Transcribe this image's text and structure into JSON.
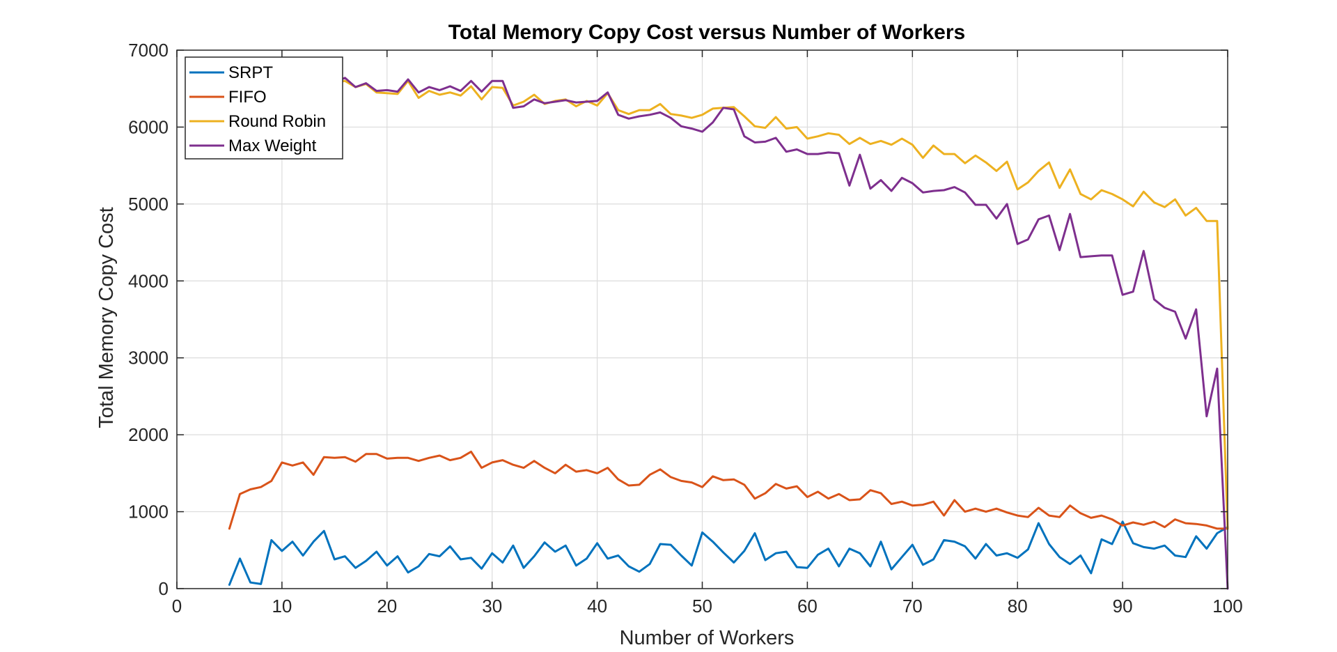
{
  "chart_data": {
    "type": "line",
    "title": "Total Memory Copy Cost versus Number of Workers",
    "xlabel": "Number of Workers",
    "ylabel": "Total Memory Copy Cost",
    "xlim": [
      0,
      100
    ],
    "ylim": [
      0,
      7000
    ],
    "xticks": [
      0,
      10,
      20,
      30,
      40,
      50,
      60,
      70,
      80,
      90,
      100
    ],
    "yticks": [
      0,
      1000,
      2000,
      3000,
      4000,
      5000,
      6000,
      7000
    ],
    "grid": true,
    "legend_position": "top-left",
    "x": [
      5,
      6,
      7,
      8,
      9,
      10,
      11,
      12,
      13,
      14,
      15,
      16,
      17,
      18,
      19,
      20,
      21,
      22,
      23,
      24,
      25,
      26,
      27,
      28,
      29,
      30,
      31,
      32,
      33,
      34,
      35,
      36,
      37,
      38,
      39,
      40,
      41,
      42,
      43,
      44,
      45,
      46,
      47,
      48,
      49,
      50,
      51,
      52,
      53,
      54,
      55,
      56,
      57,
      58,
      59,
      60,
      61,
      62,
      63,
      64,
      65,
      66,
      67,
      68,
      69,
      70,
      71,
      72,
      73,
      74,
      75,
      76,
      77,
      78,
      79,
      80,
      81,
      82,
      83,
      84,
      85,
      86,
      87,
      88,
      89,
      90,
      91,
      92,
      93,
      94,
      95,
      96,
      97,
      98,
      99,
      100
    ],
    "series": [
      {
        "name": "SRPT",
        "color": "#0072BD",
        "values": [
          50,
          390,
          80,
          60,
          630,
          490,
          610,
          430,
          610,
          750,
          380,
          420,
          270,
          360,
          480,
          300,
          420,
          210,
          290,
          450,
          420,
          550,
          380,
          400,
          260,
          460,
          340,
          560,
          270,
          420,
          600,
          480,
          560,
          300,
          390,
          590,
          390,
          430,
          290,
          220,
          320,
          580,
          570,
          430,
          300,
          730,
          610,
          470,
          340,
          490,
          720,
          370,
          460,
          480,
          280,
          270,
          440,
          520,
          290,
          520,
          460,
          290,
          610,
          250,
          410,
          570,
          310,
          380,
          630,
          610,
          550,
          390,
          580,
          430,
          460,
          400,
          510,
          850,
          580,
          410,
          320,
          430,
          200,
          640,
          580,
          870,
          590,
          540,
          520,
          560,
          430,
          410,
          680,
          520,
          720,
          800
        ]
      },
      {
        "name": "FIFO",
        "color": "#D95319",
        "values": [
          780,
          1230,
          1290,
          1320,
          1400,
          1640,
          1600,
          1640,
          1480,
          1710,
          1700,
          1710,
          1650,
          1750,
          1750,
          1690,
          1700,
          1700,
          1660,
          1700,
          1730,
          1670,
          1700,
          1780,
          1570,
          1640,
          1670,
          1610,
          1570,
          1660,
          1570,
          1500,
          1610,
          1520,
          1540,
          1500,
          1570,
          1420,
          1340,
          1350,
          1480,
          1550,
          1450,
          1400,
          1380,
          1320,
          1460,
          1410,
          1420,
          1350,
          1170,
          1240,
          1360,
          1300,
          1330,
          1190,
          1260,
          1170,
          1230,
          1150,
          1160,
          1280,
          1240,
          1100,
          1130,
          1080,
          1090,
          1130,
          950,
          1150,
          1000,
          1040,
          1000,
          1040,
          990,
          950,
          930,
          1050,
          950,
          930,
          1080,
          980,
          920,
          950,
          900,
          820,
          860,
          830,
          870,
          800,
          900,
          850,
          840,
          820,
          780,
          780
        ]
      },
      {
        "name": "Round Robin",
        "color": "#EDB120",
        "values": [
          6680,
          6650,
          6620,
          6600,
          6600,
          6580,
          6600,
          6580,
          6600,
          6560,
          6580,
          6600,
          6520,
          6560,
          6450,
          6440,
          6430,
          6600,
          6380,
          6470,
          6420,
          6450,
          6410,
          6530,
          6360,
          6520,
          6510,
          6280,
          6330,
          6420,
          6300,
          6340,
          6360,
          6270,
          6340,
          6280,
          6440,
          6220,
          6170,
          6220,
          6220,
          6300,
          6170,
          6150,
          6120,
          6160,
          6240,
          6250,
          6260,
          6140,
          6010,
          5990,
          6130,
          5980,
          6000,
          5850,
          5880,
          5920,
          5900,
          5780,
          5860,
          5780,
          5820,
          5770,
          5850,
          5770,
          5600,
          5760,
          5650,
          5650,
          5530,
          5630,
          5540,
          5430,
          5550,
          5190,
          5280,
          5430,
          5540,
          5210,
          5450,
          5130,
          5060,
          5180,
          5130,
          5060,
          4970,
          5160,
          5020,
          4960,
          5060,
          4850,
          4950,
          4780,
          4780,
          780
        ]
      },
      {
        "name": "Max Weight",
        "color": "#7E2F8E",
        "values": [
          6700,
          6680,
          6640,
          6620,
          6620,
          6600,
          6620,
          6600,
          6580,
          6600,
          6580,
          6640,
          6520,
          6570,
          6470,
          6480,
          6460,
          6620,
          6450,
          6520,
          6480,
          6530,
          6470,
          6600,
          6460,
          6600,
          6600,
          6250,
          6270,
          6360,
          6310,
          6330,
          6350,
          6320,
          6330,
          6340,
          6450,
          6160,
          6110,
          6140,
          6160,
          6190,
          6120,
          6010,
          5980,
          5940,
          6060,
          6250,
          6230,
          5880,
          5800,
          5810,
          5860,
          5680,
          5710,
          5650,
          5650,
          5670,
          5660,
          5240,
          5640,
          5200,
          5310,
          5170,
          5340,
          5270,
          5150,
          5170,
          5180,
          5220,
          5150,
          4990,
          4990,
          4810,
          5000,
          4480,
          4540,
          4800,
          4850,
          4400,
          4870,
          4310,
          4320,
          4330,
          4330,
          3820,
          3860,
          4390,
          3760,
          3650,
          3600,
          3250,
          3630,
          2240,
          2860,
          0
        ]
      }
    ]
  }
}
